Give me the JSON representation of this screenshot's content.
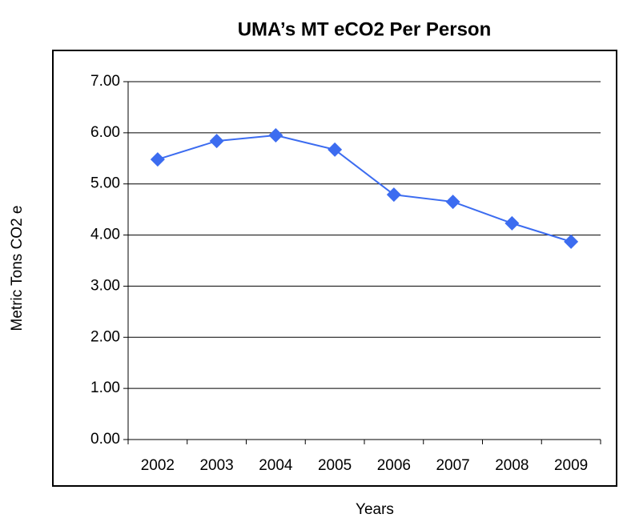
{
  "chart_data": {
    "type": "line",
    "title": "UMA’s MT eCO2 Per Person",
    "x_label": "Years",
    "y_label": "Metric Tons CO2 e",
    "categories": [
      "2002",
      "2003",
      "2004",
      "2005",
      "2006",
      "2007",
      "2008",
      "2009"
    ],
    "values": [
      5.48,
      5.84,
      5.95,
      5.67,
      4.79,
      4.65,
      4.23,
      3.87
    ],
    "color": "#3c6cf0",
    "ylim": [
      0,
      7
    ],
    "yticks": [
      {
        "value": 0,
        "label": "0.00"
      },
      {
        "value": 1,
        "label": "1.00"
      },
      {
        "value": 2,
        "label": "2.00"
      },
      {
        "value": 3,
        "label": "3.00"
      },
      {
        "value": 4,
        "label": "4.00"
      },
      {
        "value": 5,
        "label": "5.00"
      },
      {
        "value": 6,
        "label": "6.00"
      },
      {
        "value": 7,
        "label": "7.00"
      }
    ],
    "grid": true
  }
}
